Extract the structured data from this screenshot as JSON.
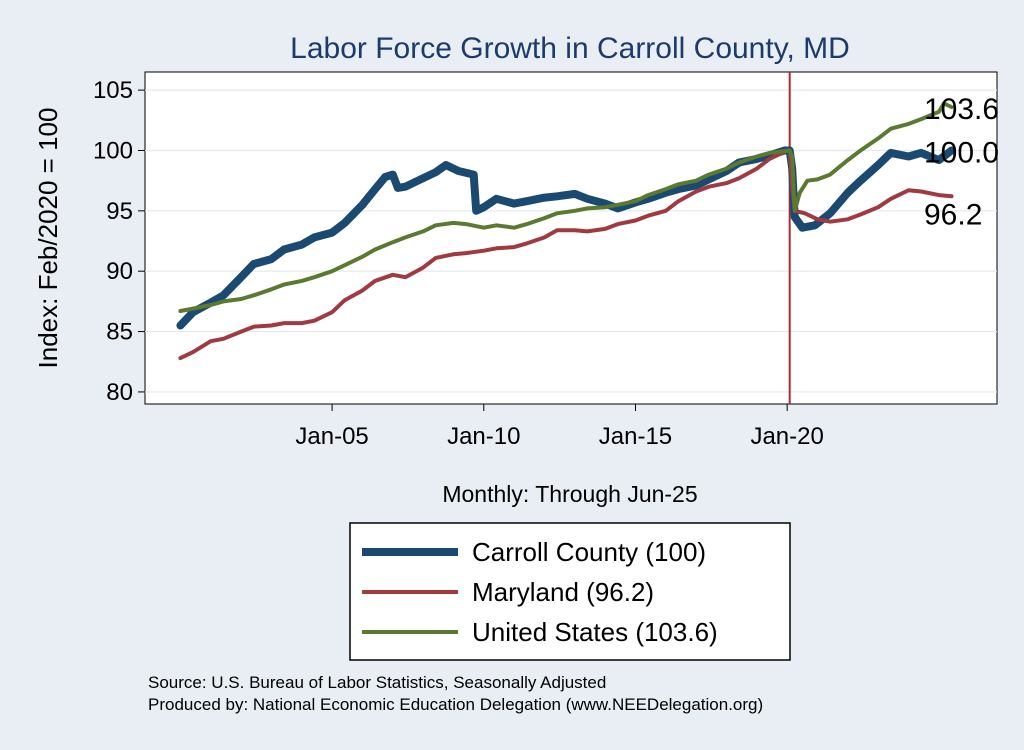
{
  "chart_data": {
    "type": "line",
    "title": "Labor Force Growth in Carroll  County, MD",
    "xlabel": "Monthly: Through Jun-25",
    "ylabel": "Index: Feb/2020 = 100",
    "x_unit": "month",
    "x_range": [
      "2000-01",
      "2025-06"
    ],
    "x_axis_limits": [
      "1998-11",
      "2026-12"
    ],
    "x_ticks": [
      {
        "label": "Jan-05",
        "x": "2005-01"
      },
      {
        "label": "Jan-10",
        "x": "2010-01"
      },
      {
        "label": "Jan-15",
        "x": "2015-01"
      },
      {
        "label": "Jan-20",
        "x": "2020-01"
      }
    ],
    "ylim": [
      79,
      106.5
    ],
    "y_ticks": [
      80,
      85,
      90,
      95,
      100,
      105
    ],
    "grid": true,
    "reference_line": {
      "x": "2020-02",
      "color": "#b0283a"
    },
    "legend_position": "bottom",
    "series": [
      {
        "name": "Carroll  County (100)",
        "color": "#1a4a72",
        "line_width": 8,
        "end_label": "100.0",
        "points": [
          [
            "2000-01",
            85.5
          ],
          [
            "2000-06",
            86.6
          ],
          [
            "2001-01",
            87.4
          ],
          [
            "2001-06",
            88.0
          ],
          [
            "2002-01",
            89.5
          ],
          [
            "2002-06",
            90.6
          ],
          [
            "2003-01",
            91.0
          ],
          [
            "2003-06",
            91.8
          ],
          [
            "2004-01",
            92.2
          ],
          [
            "2004-06",
            92.8
          ],
          [
            "2005-01",
            93.2
          ],
          [
            "2005-06",
            94.0
          ],
          [
            "2006-01",
            95.5
          ],
          [
            "2006-06",
            96.8
          ],
          [
            "2006-10",
            97.8
          ],
          [
            "2007-01",
            98.0
          ],
          [
            "2007-03",
            96.9
          ],
          [
            "2007-06",
            97.0
          ],
          [
            "2008-01",
            97.7
          ],
          [
            "2008-06",
            98.2
          ],
          [
            "2008-10",
            98.8
          ],
          [
            "2009-03",
            98.3
          ],
          [
            "2009-09",
            98.0
          ],
          [
            "2009-10",
            95.0
          ],
          [
            "2010-01",
            95.3
          ],
          [
            "2010-06",
            96.0
          ],
          [
            "2011-01",
            95.6
          ],
          [
            "2011-06",
            95.8
          ],
          [
            "2012-01",
            96.1
          ],
          [
            "2012-06",
            96.2
          ],
          [
            "2013-01",
            96.4
          ],
          [
            "2013-06",
            96.0
          ],
          [
            "2014-01",
            95.6
          ],
          [
            "2014-06",
            95.2
          ],
          [
            "2015-01",
            95.7
          ],
          [
            "2015-06",
            96.0
          ],
          [
            "2016-01",
            96.5
          ],
          [
            "2016-06",
            96.8
          ],
          [
            "2017-01",
            97.1
          ],
          [
            "2017-06",
            97.6
          ],
          [
            "2018-01",
            98.3
          ],
          [
            "2018-06",
            99.0
          ],
          [
            "2019-01",
            99.3
          ],
          [
            "2019-06",
            99.6
          ],
          [
            "2019-12",
            100.0
          ],
          [
            "2020-02",
            100.0
          ],
          [
            "2020-03",
            98.5
          ],
          [
            "2020-04",
            94.5
          ],
          [
            "2020-07",
            93.6
          ],
          [
            "2020-12",
            93.8
          ],
          [
            "2021-06",
            94.8
          ],
          [
            "2022-01",
            96.5
          ],
          [
            "2022-06",
            97.5
          ],
          [
            "2023-01",
            98.8
          ],
          [
            "2023-06",
            99.8
          ],
          [
            "2024-01",
            99.5
          ],
          [
            "2024-06",
            99.8
          ],
          [
            "2025-01",
            99.2
          ],
          [
            "2025-06",
            100.0
          ]
        ]
      },
      {
        "name": "Maryland (96.2)",
        "color": "#a03a40",
        "line_width": 4,
        "end_label": "96.2",
        "points": [
          [
            "2000-01",
            82.8
          ],
          [
            "2000-06",
            83.3
          ],
          [
            "2001-01",
            84.2
          ],
          [
            "2001-06",
            84.4
          ],
          [
            "2002-01",
            85.0
          ],
          [
            "2002-06",
            85.4
          ],
          [
            "2003-01",
            85.5
          ],
          [
            "2003-06",
            85.7
          ],
          [
            "2004-01",
            85.7
          ],
          [
            "2004-06",
            85.9
          ],
          [
            "2005-01",
            86.6
          ],
          [
            "2005-06",
            87.6
          ],
          [
            "2006-01",
            88.4
          ],
          [
            "2006-06",
            89.2
          ],
          [
            "2007-01",
            89.7
          ],
          [
            "2007-06",
            89.5
          ],
          [
            "2008-01",
            90.3
          ],
          [
            "2008-06",
            91.1
          ],
          [
            "2009-01",
            91.4
          ],
          [
            "2009-06",
            91.5
          ],
          [
            "2010-01",
            91.7
          ],
          [
            "2010-06",
            91.9
          ],
          [
            "2011-01",
            92.0
          ],
          [
            "2011-06",
            92.3
          ],
          [
            "2012-01",
            92.8
          ],
          [
            "2012-06",
            93.4
          ],
          [
            "2013-01",
            93.4
          ],
          [
            "2013-06",
            93.3
          ],
          [
            "2014-01",
            93.5
          ],
          [
            "2014-06",
            93.9
          ],
          [
            "2015-01",
            94.2
          ],
          [
            "2015-06",
            94.6
          ],
          [
            "2016-01",
            95.0
          ],
          [
            "2016-06",
            95.8
          ],
          [
            "2017-01",
            96.6
          ],
          [
            "2017-06",
            97.0
          ],
          [
            "2018-01",
            97.3
          ],
          [
            "2018-06",
            97.7
          ],
          [
            "2019-01",
            98.5
          ],
          [
            "2019-06",
            99.3
          ],
          [
            "2020-01",
            100.0
          ],
          [
            "2020-02",
            100.0
          ],
          [
            "2020-03",
            97.0
          ],
          [
            "2020-04",
            95.0
          ],
          [
            "2020-08",
            94.8
          ],
          [
            "2021-01",
            94.3
          ],
          [
            "2021-06",
            94.1
          ],
          [
            "2022-01",
            94.3
          ],
          [
            "2022-06",
            94.7
          ],
          [
            "2023-01",
            95.3
          ],
          [
            "2023-06",
            96.0
          ],
          [
            "2024-01",
            96.7
          ],
          [
            "2024-06",
            96.6
          ],
          [
            "2025-01",
            96.3
          ],
          [
            "2025-06",
            96.2
          ]
        ]
      },
      {
        "name": "United States (103.6)",
        "color": "#5a7a30",
        "line_width": 4,
        "end_label": "103.6",
        "points": [
          [
            "2000-01",
            86.7
          ],
          [
            "2000-06",
            86.9
          ],
          [
            "2001-01",
            87.2
          ],
          [
            "2001-06",
            87.5
          ],
          [
            "2002-01",
            87.7
          ],
          [
            "2002-06",
            88.0
          ],
          [
            "2003-01",
            88.5
          ],
          [
            "2003-06",
            88.9
          ],
          [
            "2004-01",
            89.2
          ],
          [
            "2004-06",
            89.5
          ],
          [
            "2005-01",
            90.0
          ],
          [
            "2005-06",
            90.5
          ],
          [
            "2006-01",
            91.2
          ],
          [
            "2006-06",
            91.8
          ],
          [
            "2007-01",
            92.4
          ],
          [
            "2007-06",
            92.8
          ],
          [
            "2008-01",
            93.3
          ],
          [
            "2008-06",
            93.8
          ],
          [
            "2009-01",
            94.0
          ],
          [
            "2009-06",
            93.9
          ],
          [
            "2010-01",
            93.6
          ],
          [
            "2010-06",
            93.8
          ],
          [
            "2011-01",
            93.6
          ],
          [
            "2011-06",
            93.9
          ],
          [
            "2012-01",
            94.4
          ],
          [
            "2012-06",
            94.8
          ],
          [
            "2013-01",
            95.0
          ],
          [
            "2013-06",
            95.2
          ],
          [
            "2014-01",
            95.3
          ],
          [
            "2014-06",
            95.5
          ],
          [
            "2015-01",
            95.8
          ],
          [
            "2015-06",
            96.3
          ],
          [
            "2016-01",
            96.8
          ],
          [
            "2016-06",
            97.2
          ],
          [
            "2017-01",
            97.5
          ],
          [
            "2017-06",
            98.0
          ],
          [
            "2018-01",
            98.5
          ],
          [
            "2018-06",
            99.0
          ],
          [
            "2019-01",
            99.5
          ],
          [
            "2019-06",
            99.8
          ],
          [
            "2020-02",
            100.0
          ],
          [
            "2020-03",
            99.5
          ],
          [
            "2020-04",
            95.0
          ],
          [
            "2020-06",
            96.5
          ],
          [
            "2020-09",
            97.5
          ],
          [
            "2021-01",
            97.6
          ],
          [
            "2021-06",
            98.0
          ],
          [
            "2022-01",
            99.2
          ],
          [
            "2022-06",
            100.0
          ],
          [
            "2023-01",
            101.0
          ],
          [
            "2023-06",
            101.8
          ],
          [
            "2024-01",
            102.2
          ],
          [
            "2024-06",
            102.6
          ],
          [
            "2025-01",
            103.2
          ],
          [
            "2025-03",
            103.9
          ],
          [
            "2025-06",
            103.6
          ]
        ]
      }
    ]
  },
  "source_text": "Source: U.S. Bureau of Labor Statistics, Seasonally Adjusted",
  "produced_text": "Produced by: National Economic Education Delegation (www.NEEDelegation.org)"
}
